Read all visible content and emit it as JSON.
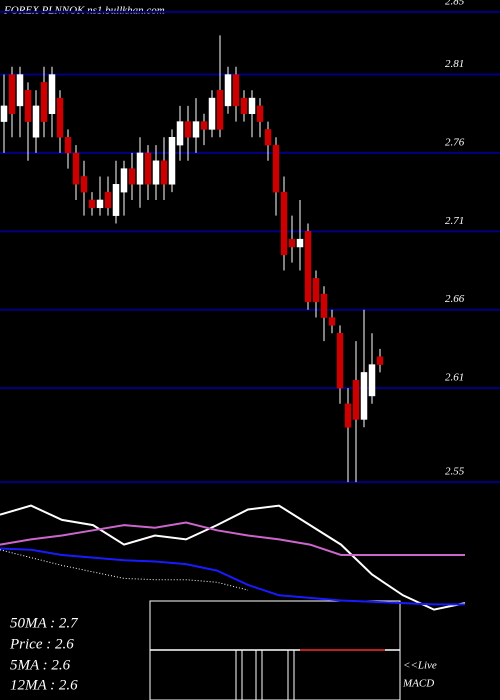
{
  "chart_data": [
    {
      "type": "candlestick",
      "title": "FOREX PLNNOK ns1.bullkhan.com",
      "ylim": [
        2.545,
        2.855
      ],
      "yticks": [
        2.85,
        2.81,
        2.76,
        2.71,
        2.66,
        2.61,
        2.55
      ],
      "grid": true,
      "grid_color": "#000080",
      "up_color": "#ffffff",
      "down_color": "#cc0000",
      "candles": [
        [
          2.78,
          2.81,
          2.76,
          2.79
        ],
        [
          2.81,
          2.815,
          2.77,
          2.785
        ],
        [
          2.79,
          2.815,
          2.77,
          2.81
        ],
        [
          2.8,
          2.805,
          2.755,
          2.78
        ],
        [
          2.77,
          2.8,
          2.76,
          2.79
        ],
        [
          2.805,
          2.815,
          2.77,
          2.78
        ],
        [
          2.785,
          2.815,
          2.77,
          2.81
        ],
        [
          2.795,
          2.8,
          2.76,
          2.77
        ],
        [
          2.77,
          2.775,
          2.75,
          2.76
        ],
        [
          2.76,
          2.765,
          2.73,
          2.74
        ],
        [
          2.745,
          2.755,
          2.72,
          2.735
        ],
        [
          2.73,
          2.735,
          2.72,
          2.725
        ],
        [
          2.725,
          2.745,
          2.72,
          2.73
        ],
        [
          2.735,
          2.745,
          2.72,
          2.725
        ],
        [
          2.72,
          2.755,
          2.715,
          2.74
        ],
        [
          2.735,
          2.755,
          2.72,
          2.75
        ],
        [
          2.75,
          2.76,
          2.73,
          2.74
        ],
        [
          2.74,
          2.77,
          2.725,
          2.76
        ],
        [
          2.76,
          2.765,
          2.73,
          2.74
        ],
        [
          2.74,
          2.765,
          2.73,
          2.755
        ],
        [
          2.755,
          2.77,
          2.73,
          2.74
        ],
        [
          2.74,
          2.775,
          2.735,
          2.77
        ],
        [
          2.765,
          2.79,
          2.755,
          2.78
        ],
        [
          2.78,
          2.79,
          2.755,
          2.77
        ],
        [
          2.77,
          2.795,
          2.76,
          2.78
        ],
        [
          2.78,
          2.785,
          2.765,
          2.775
        ],
        [
          2.775,
          2.8,
          2.77,
          2.795
        ],
        [
          2.8,
          2.835,
          2.77,
          2.775
        ],
        [
          2.79,
          2.815,
          2.785,
          2.81
        ],
        [
          2.81,
          2.815,
          2.78,
          2.79
        ],
        [
          2.795,
          2.8,
          2.78,
          2.785
        ],
        [
          2.785,
          2.8,
          2.77,
          2.795
        ],
        [
          2.79,
          2.795,
          2.77,
          2.78
        ],
        [
          2.775,
          2.78,
          2.755,
          2.765
        ],
        [
          2.765,
          2.77,
          2.72,
          2.735
        ],
        [
          2.735,
          2.745,
          2.685,
          2.695
        ],
        [
          2.705,
          2.72,
          2.69,
          2.7
        ],
        [
          2.7,
          2.73,
          2.685,
          2.705
        ],
        [
          2.71,
          2.715,
          2.66,
          2.665
        ],
        [
          2.68,
          2.685,
          2.655,
          2.665
        ],
        [
          2.67,
          2.675,
          2.64,
          2.655
        ],
        [
          2.655,
          2.66,
          2.645,
          2.65
        ],
        [
          2.645,
          2.65,
          2.6,
          2.61
        ],
        [
          2.6,
          2.61,
          2.55,
          2.585
        ],
        [
          2.615,
          2.64,
          2.55,
          2.59
        ],
        [
          2.59,
          2.66,
          2.585,
          2.62
        ],
        [
          2.605,
          2.645,
          2.6,
          2.625
        ],
        [
          2.63,
          2.635,
          2.62,
          2.625
        ]
      ]
    },
    {
      "type": "line",
      "ylim": [
        0,
        100
      ],
      "series": [
        {
          "color": "#ffffff",
          "values": [
            81,
            88,
            77,
            73,
            58,
            65,
            62,
            73,
            85,
            88,
            73,
            58,
            35,
            19,
            8,
            13
          ]
        },
        {
          "color": "#cc66cc",
          "values": [
            58,
            62,
            65,
            69,
            73,
            71,
            75,
            69,
            65,
            62,
            58,
            50,
            50,
            50,
            50,
            50
          ]
        },
        {
          "color": "#1a1aff",
          "values": [
            55,
            54,
            50,
            48,
            46,
            45,
            43,
            38,
            27,
            19,
            17,
            15,
            14,
            13,
            12,
            12
          ]
        },
        {
          "color": "#ffffff",
          "dash": true,
          "values": [
            54,
            48,
            42,
            37,
            32,
            31,
            31,
            29,
            23,
            null,
            null,
            null,
            null,
            null,
            null,
            null
          ]
        }
      ]
    }
  ],
  "info": {
    "ma50": "50MA : 2.7",
    "price": "Price  : 2.6",
    "ma5": "5MA : 2.6",
    "ma12": "12MA : 2.6",
    "live": "<<Live",
    "macd": "MACD"
  }
}
